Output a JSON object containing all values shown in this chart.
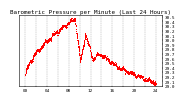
{
  "title": "Barometric Pressure per Minute (Last 24 Hours)",
  "background_color": "#ffffff",
  "plot_bg_color": "#ffffff",
  "grid_color": "#999999",
  "line_color": "#ff0000",
  "ylim": [
    29.0,
    30.55
  ],
  "num_points": 1440,
  "title_fontsize": 4.2,
  "tick_fontsize": 3.2,
  "ytick_values": [
    29.0,
    29.1,
    29.2,
    29.3,
    29.4,
    29.5,
    29.6,
    29.7,
    29.8,
    29.9,
    30.0,
    30.1,
    30.2,
    30.3,
    30.4,
    30.5
  ],
  "num_vgrid": 13
}
